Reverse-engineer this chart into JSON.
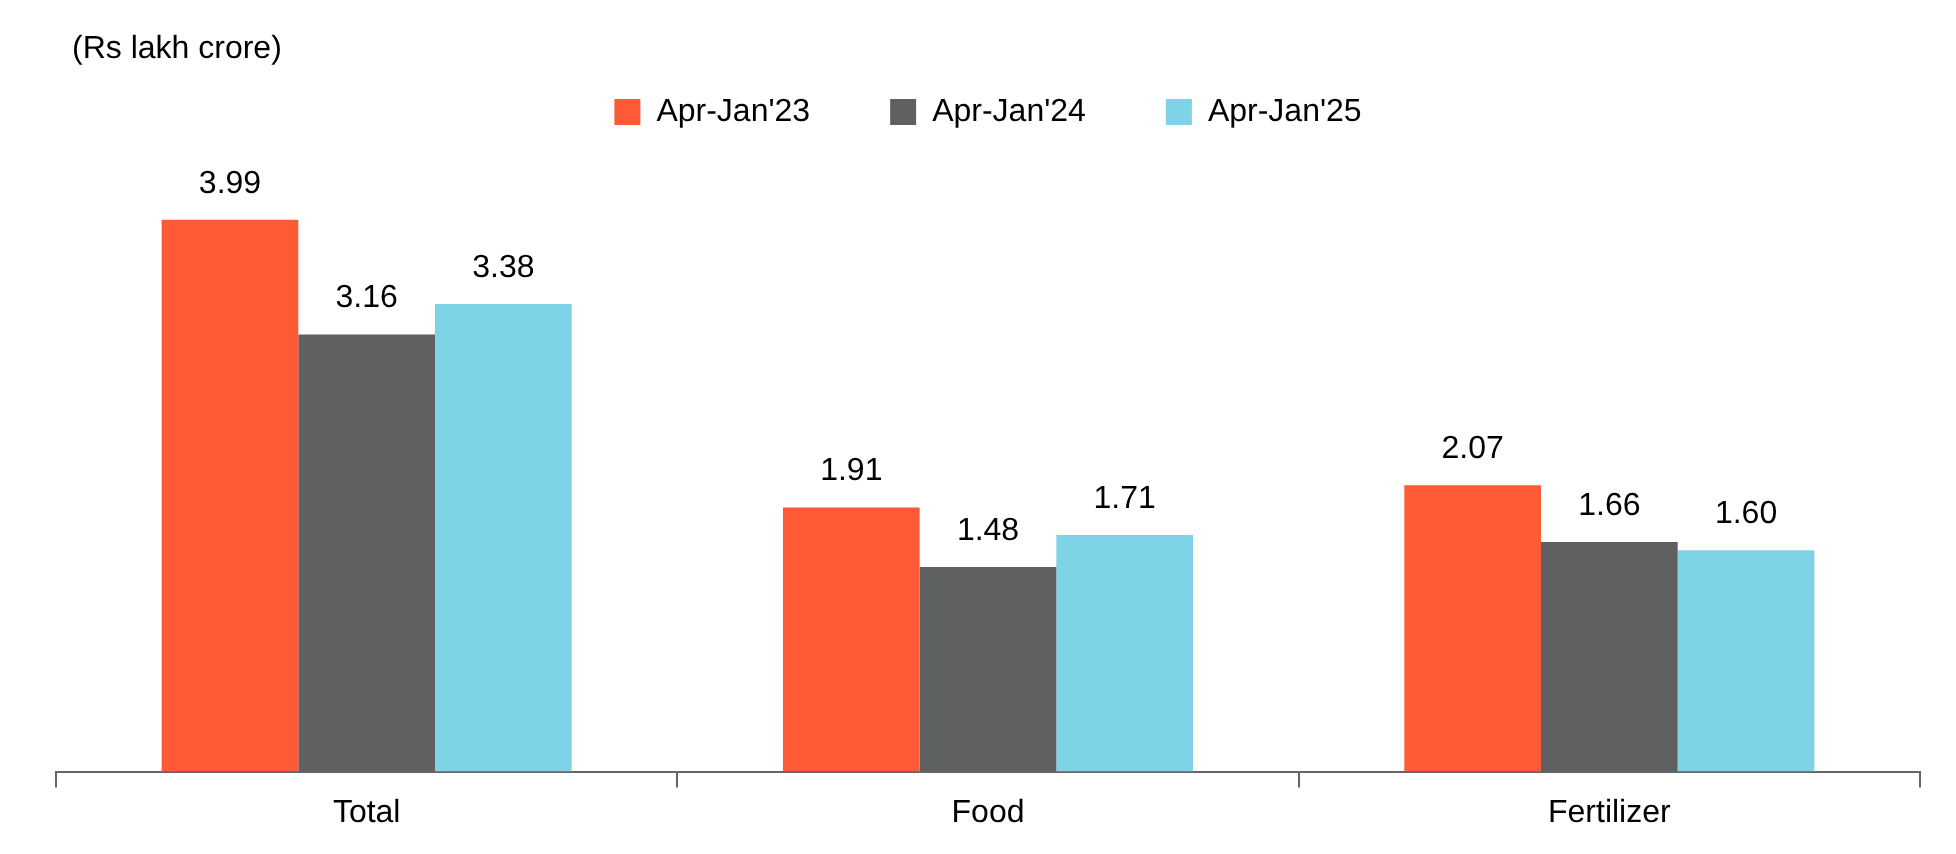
{
  "chart_data": {
    "type": "bar",
    "ylabel": "(Rs lakh crore)",
    "categories": [
      "Total",
      "Food",
      "Fertilizer"
    ],
    "series": [
      {
        "name": "Apr-Jan'23",
        "color": "#ff5a36",
        "values": [
          3.99,
          1.91,
          2.07
        ],
        "value_labels": [
          "3.99",
          "1.91",
          "2.07"
        ]
      },
      {
        "name": "Apr-Jan'24",
        "color": "#5f6062",
        "values": [
          3.16,
          1.48,
          1.66
        ],
        "value_labels": [
          "3.16",
          "1.48",
          "1.66"
        ]
      },
      {
        "name": "Apr-Jan'25",
        "color": "#7fd3e6",
        "values": [
          3.38,
          1.71,
          1.6
        ],
        "value_labels": [
          "3.38",
          "1.71",
          "1.60"
        ]
      }
    ],
    "legend": "top",
    "grid": false
  }
}
